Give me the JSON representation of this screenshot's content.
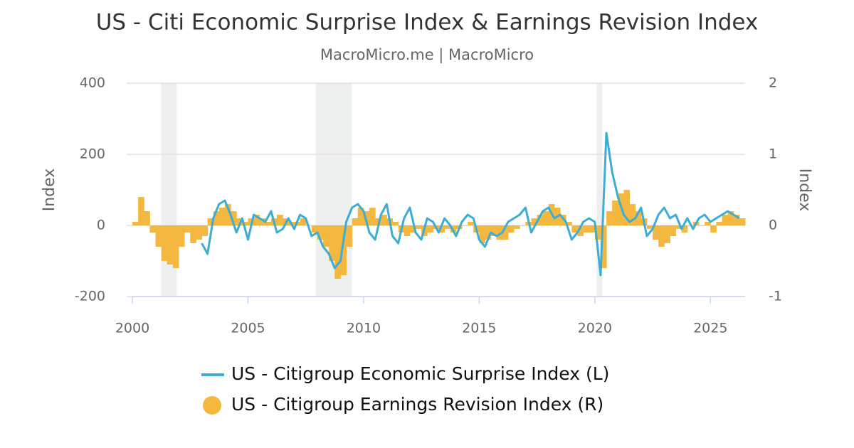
{
  "chart_data": {
    "type": "bar-line",
    "title": "US - Citi Economic Surprise Index & Earnings Revision Index",
    "subtitle": "MacroMicro.me | MacroMicro",
    "y_label": "Index",
    "y2_label": "Index",
    "xlim": [
      2000,
      2026.5
    ],
    "xticks": [
      2000,
      2005,
      2010,
      2015,
      2020,
      2025
    ],
    "ylim": [
      -200,
      400
    ],
    "yticks": [
      -200,
      0,
      200,
      400
    ],
    "y2lim": [
      -1,
      2
    ],
    "y2ticks": [
      -1,
      0,
      1,
      2
    ],
    "grid": true,
    "shaded_periods": [
      [
        2001.25,
        2001.92
      ],
      [
        2007.92,
        2009.5
      ],
      [
        2020.08,
        2020.33
      ]
    ],
    "shade_color": "#eef0f0",
    "x": [
      2000,
      2000.25,
      2000.5,
      2000.75,
      2001,
      2001.25,
      2001.5,
      2001.75,
      2002,
      2002.25,
      2002.5,
      2002.75,
      2003,
      2003.25,
      2003.5,
      2003.75,
      2004,
      2004.25,
      2004.5,
      2004.75,
      2005,
      2005.25,
      2005.5,
      2005.75,
      2006,
      2006.25,
      2006.5,
      2006.75,
      2007,
      2007.25,
      2007.5,
      2007.75,
      2008,
      2008.25,
      2008.5,
      2008.75,
      2009,
      2009.25,
      2009.5,
      2009.75,
      2010,
      2010.25,
      2010.5,
      2010.75,
      2011,
      2011.25,
      2011.5,
      2011.75,
      2012,
      2012.25,
      2012.5,
      2012.75,
      2013,
      2013.25,
      2013.5,
      2013.75,
      2014,
      2014.25,
      2014.5,
      2014.75,
      2015,
      2015.25,
      2015.5,
      2015.75,
      2016,
      2016.25,
      2016.5,
      2016.75,
      2017,
      2017.25,
      2017.5,
      2017.75,
      2018,
      2018.25,
      2018.5,
      2018.75,
      2019,
      2019.25,
      2019.5,
      2019.75,
      2020,
      2020.25,
      2020.5,
      2020.75,
      2021,
      2021.25,
      2021.5,
      2021.75,
      2022,
      2022.25,
      2022.5,
      2022.75,
      2023,
      2023.25,
      2023.5,
      2023.75,
      2024,
      2024.25,
      2024.5,
      2024.75,
      2025,
      2025.25,
      2025.5,
      2025.75,
      2026,
      2026.25
    ],
    "series": [
      {
        "name": "US - Citigroup Economic Surprise Index (L)",
        "color": "#3eadd5",
        "axis": "y",
        "kind": "line",
        "values": [
          null,
          null,
          null,
          null,
          null,
          null,
          null,
          null,
          null,
          null,
          null,
          null,
          -50,
          -80,
          20,
          60,
          70,
          30,
          -20,
          20,
          -40,
          30,
          20,
          10,
          40,
          -20,
          -10,
          20,
          -10,
          30,
          20,
          -30,
          -20,
          -60,
          -80,
          -120,
          -100,
          10,
          50,
          60,
          40,
          -20,
          -40,
          30,
          60,
          -30,
          -50,
          20,
          50,
          -20,
          -40,
          20,
          10,
          -20,
          20,
          0,
          -30,
          10,
          30,
          20,
          -40,
          -60,
          -20,
          -30,
          -20,
          10,
          20,
          30,
          50,
          -20,
          10,
          40,
          50,
          20,
          30,
          10,
          -40,
          -20,
          10,
          20,
          10,
          -140,
          260,
          150,
          80,
          30,
          10,
          20,
          50,
          -30,
          -10,
          30,
          50,
          20,
          30,
          -10,
          20,
          -10,
          20,
          30,
          10,
          20,
          30,
          40,
          30,
          20
        ]
      },
      {
        "name": "US - Citigroup Earnings Revision Index (R)",
        "color": "#f4b840",
        "axis": "y2",
        "kind": "bar",
        "values": [
          0.05,
          0.4,
          0.2,
          -0.1,
          -0.3,
          -0.5,
          -0.55,
          -0.6,
          -0.3,
          -0.1,
          -0.25,
          -0.2,
          -0.15,
          0.1,
          0.2,
          0.25,
          0.3,
          0.2,
          0.1,
          0.05,
          0.1,
          0.15,
          0.1,
          0.05,
          0.1,
          0.15,
          0.1,
          0.05,
          0.05,
          0.1,
          0.0,
          -0.1,
          -0.2,
          -0.3,
          -0.5,
          -0.75,
          -0.7,
          -0.3,
          0.1,
          0.25,
          0.2,
          0.25,
          0.1,
          0.15,
          0.1,
          0.05,
          -0.1,
          -0.15,
          -0.1,
          -0.05,
          -0.15,
          -0.1,
          -0.05,
          -0.1,
          -0.05,
          -0.1,
          -0.05,
          0.0,
          0.05,
          -0.1,
          -0.25,
          -0.2,
          -0.15,
          -0.2,
          -0.2,
          -0.1,
          -0.05,
          0.0,
          0.05,
          0.1,
          0.15,
          0.2,
          0.3,
          0.25,
          0.15,
          0.05,
          -0.1,
          -0.15,
          -0.1,
          -0.1,
          -0.2,
          -0.6,
          0.2,
          0.35,
          0.45,
          0.5,
          0.3,
          0.2,
          0.1,
          -0.05,
          -0.2,
          -0.3,
          -0.25,
          -0.15,
          -0.05,
          -0.1,
          0.0,
          0.05,
          0.0,
          0.05,
          -0.1,
          0.05,
          0.15,
          0.2,
          0.15,
          0.1
        ]
      }
    ]
  }
}
